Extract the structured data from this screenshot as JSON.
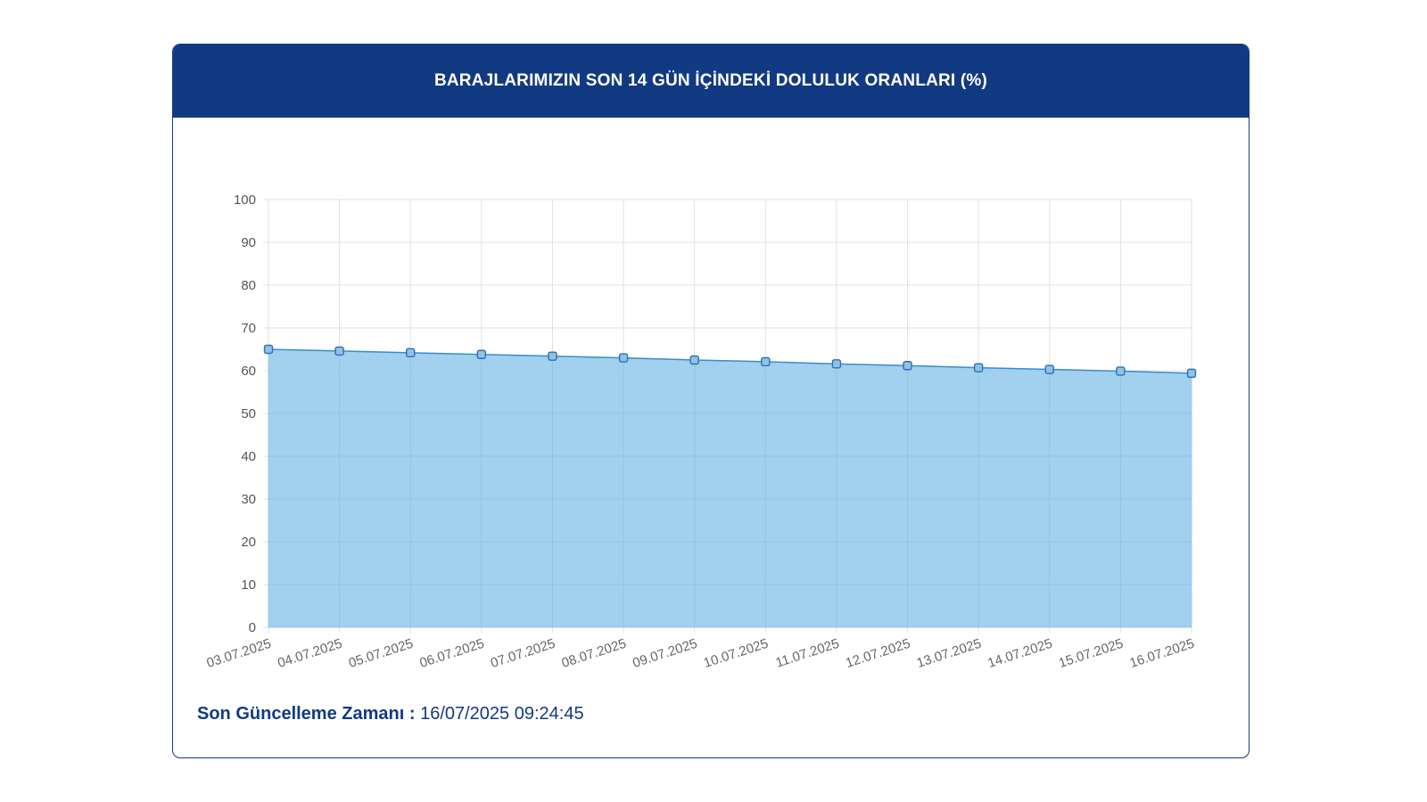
{
  "card": {
    "title": "BARAJLARIMIZIN SON 14 GÜN İÇİNDEKİ DOLULUK ORANLARI (%)"
  },
  "footer": {
    "label": "Son Güncelleme Zamanı :",
    "value": "16/07/2025 09:24:45"
  },
  "colors": {
    "header_bg": "#123a82",
    "area_fill": "#9ccfed",
    "line": "#3a8cc6",
    "point": "#4a90d0",
    "grid": "#e2e2e2"
  },
  "chart_data": {
    "type": "area",
    "title": "BARAJLARIMIZIN SON 14 GÜN İÇİNDEKİ DOLULUK ORANLARI (%)",
    "xlabel": "",
    "ylabel": "",
    "ylim": [
      0,
      100
    ],
    "yticks": [
      0,
      10,
      20,
      30,
      40,
      50,
      60,
      70,
      80,
      90,
      100
    ],
    "grid": true,
    "legend": "none",
    "categories": [
      "03.07.2025",
      "04.07.2025",
      "05.07.2025",
      "06.07.2025",
      "07.07.2025",
      "08.07.2025",
      "09.07.2025",
      "10.07.2025",
      "11.07.2025",
      "12.07.2025",
      "13.07.2025",
      "14.07.2025",
      "15.07.2025",
      "16.07.2025"
    ],
    "series": [
      {
        "values": [
          65.0,
          64.6,
          64.2,
          63.8,
          63.4,
          63.0,
          62.5,
          62.1,
          61.6,
          61.2,
          60.7,
          60.3,
          59.9,
          59.4
        ]
      }
    ]
  }
}
